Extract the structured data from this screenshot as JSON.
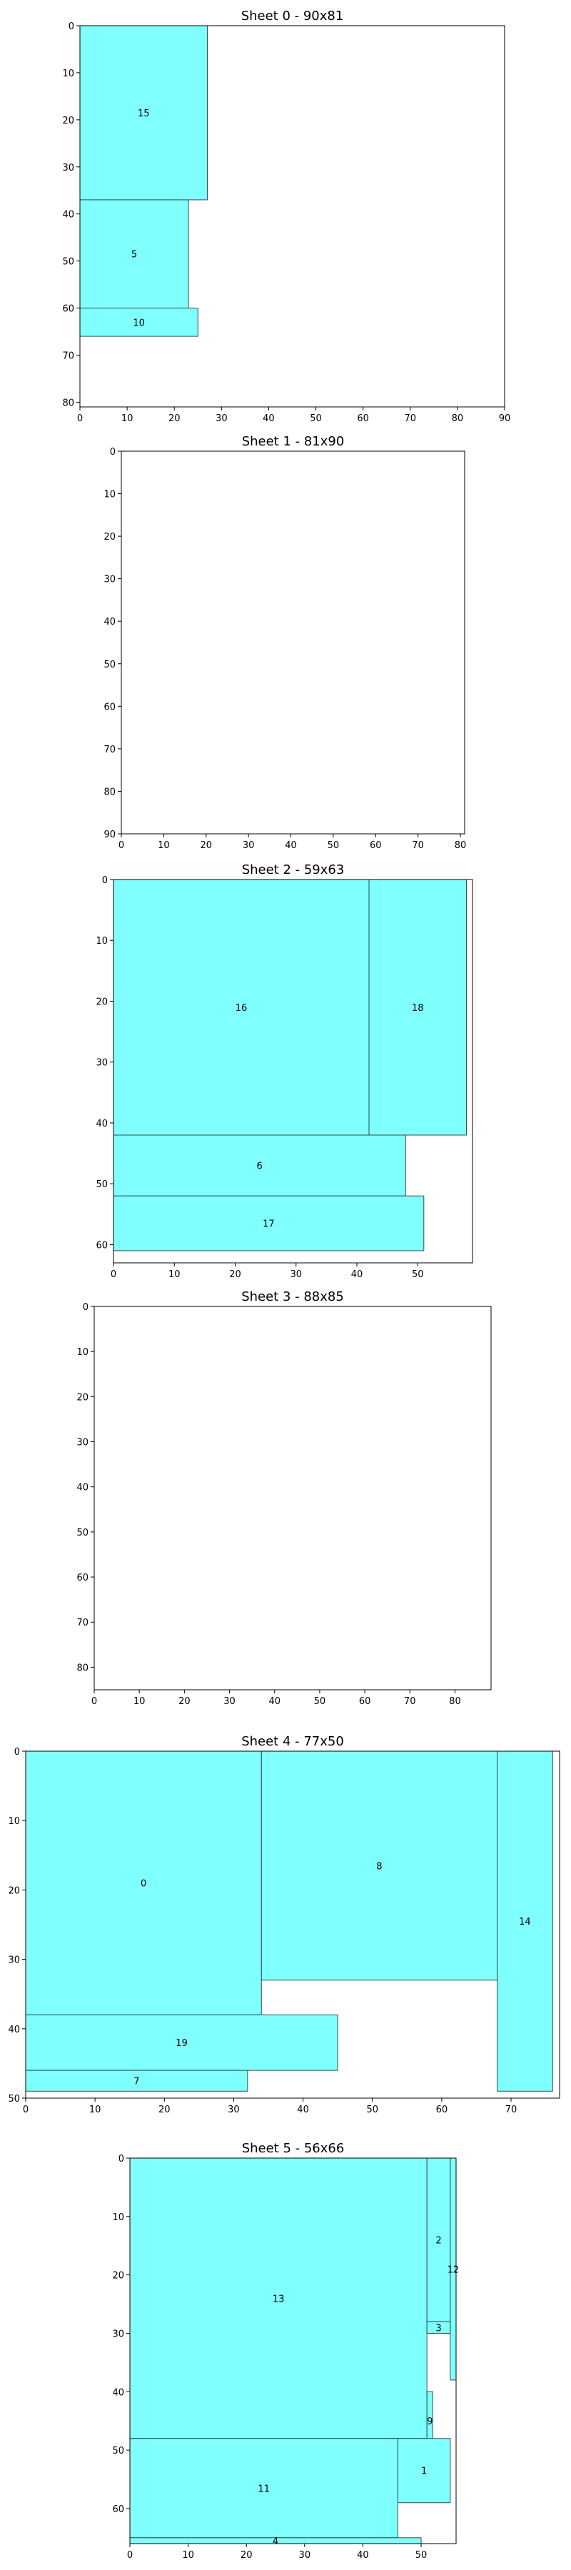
{
  "chart_data": [
    {
      "type": "rectangle-packing",
      "title": "Sheet 0 - 90x81",
      "sheet_width": 90,
      "sheet_height": 81,
      "xlim": [
        0,
        90
      ],
      "ylim": [
        81,
        0
      ],
      "xticks": [
        0,
        10,
        20,
        30,
        40,
        50,
        60,
        70,
        80,
        90
      ],
      "yticks": [
        0,
        10,
        20,
        30,
        40,
        50,
        60,
        70,
        80
      ],
      "rectangles": [
        {
          "label": "15",
          "x": 0,
          "y": 0,
          "w": 27,
          "h": 37
        },
        {
          "label": "5",
          "x": 0,
          "y": 37,
          "w": 23,
          "h": 23
        },
        {
          "label": "10",
          "x": 0,
          "y": 60,
          "w": 25,
          "h": 6
        }
      ]
    },
    {
      "type": "rectangle-packing",
      "title": "Sheet 1 - 81x90",
      "sheet_width": 81,
      "sheet_height": 90,
      "xlim": [
        0,
        81
      ],
      "ylim": [
        90,
        0
      ],
      "xticks": [
        0,
        10,
        20,
        30,
        40,
        50,
        60,
        70,
        80
      ],
      "yticks": [
        0,
        10,
        20,
        30,
        40,
        50,
        60,
        70,
        80,
        90
      ],
      "rectangles": []
    },
    {
      "type": "rectangle-packing",
      "title": "Sheet 2 - 59x63",
      "sheet_width": 59,
      "sheet_height": 63,
      "xlim": [
        0,
        59
      ],
      "ylim": [
        63,
        0
      ],
      "xticks": [
        0,
        10,
        20,
        30,
        40,
        50
      ],
      "yticks": [
        0,
        10,
        20,
        30,
        40,
        50,
        60
      ],
      "rectangles": [
        {
          "label": "16",
          "x": 0,
          "y": 0,
          "w": 42,
          "h": 42
        },
        {
          "label": "18",
          "x": 42,
          "y": 0,
          "w": 16,
          "h": 42
        },
        {
          "label": "6",
          "x": 0,
          "y": 42,
          "w": 48,
          "h": 10
        },
        {
          "label": "17",
          "x": 0,
          "y": 52,
          "w": 51,
          "h": 9
        }
      ]
    },
    {
      "type": "rectangle-packing",
      "title": "Sheet 3 - 88x85",
      "sheet_width": 88,
      "sheet_height": 85,
      "xlim": [
        0,
        88
      ],
      "ylim": [
        85,
        0
      ],
      "xticks": [
        0,
        10,
        20,
        30,
        40,
        50,
        60,
        70,
        80
      ],
      "yticks": [
        0,
        10,
        20,
        30,
        40,
        50,
        60,
        70,
        80
      ],
      "rectangles": []
    },
    {
      "type": "rectangle-packing",
      "title": "Sheet 4 - 77x50",
      "sheet_width": 77,
      "sheet_height": 50,
      "xlim": [
        0,
        77
      ],
      "ylim": [
        50,
        0
      ],
      "xticks": [
        0,
        10,
        20,
        30,
        40,
        50,
        60,
        70
      ],
      "yticks": [
        0,
        10,
        20,
        30,
        40,
        50
      ],
      "rectangles": [
        {
          "label": "0",
          "x": 0,
          "y": 0,
          "w": 34,
          "h": 38
        },
        {
          "label": "8",
          "x": 34,
          "y": 0,
          "w": 34,
          "h": 33
        },
        {
          "label": "14",
          "x": 68,
          "y": 0,
          "w": 8,
          "h": 49
        },
        {
          "label": "19",
          "x": 0,
          "y": 38,
          "w": 45,
          "h": 8
        },
        {
          "label": "7",
          "x": 0,
          "y": 46,
          "w": 32,
          "h": 3
        }
      ]
    },
    {
      "type": "rectangle-packing",
      "title": "Sheet 5 - 56x66",
      "sheet_width": 56,
      "sheet_height": 66,
      "xlim": [
        0,
        56
      ],
      "ylim": [
        66,
        0
      ],
      "xticks": [
        0,
        10,
        20,
        30,
        40,
        50
      ],
      "yticks": [
        0,
        10,
        20,
        30,
        40,
        50,
        60
      ],
      "rectangles": [
        {
          "label": "13",
          "x": 0,
          "y": 0,
          "w": 51,
          "h": 48
        },
        {
          "label": "2",
          "x": 51,
          "y": 0,
          "w": 4,
          "h": 28
        },
        {
          "label": "12",
          "x": 55,
          "y": 0,
          "w": 1,
          "h": 38
        },
        {
          "label": "3",
          "x": 51,
          "y": 28,
          "w": 4,
          "h": 2
        },
        {
          "label": "9",
          "x": 51,
          "y": 40,
          "w": 1,
          "h": 10
        },
        {
          "label": "1",
          "x": 46,
          "y": 48,
          "w": 9,
          "h": 11
        },
        {
          "label": "11",
          "x": 0,
          "y": 48,
          "w": 46,
          "h": 17
        },
        {
          "label": "4",
          "x": 0,
          "y": 65,
          "w": 50,
          "h": 1
        }
      ]
    }
  ],
  "colors": {
    "piece_fill": "#80ffff",
    "piece_stroke": "#2f4f4f",
    "frame": "#000000",
    "background": "#ffffff"
  }
}
